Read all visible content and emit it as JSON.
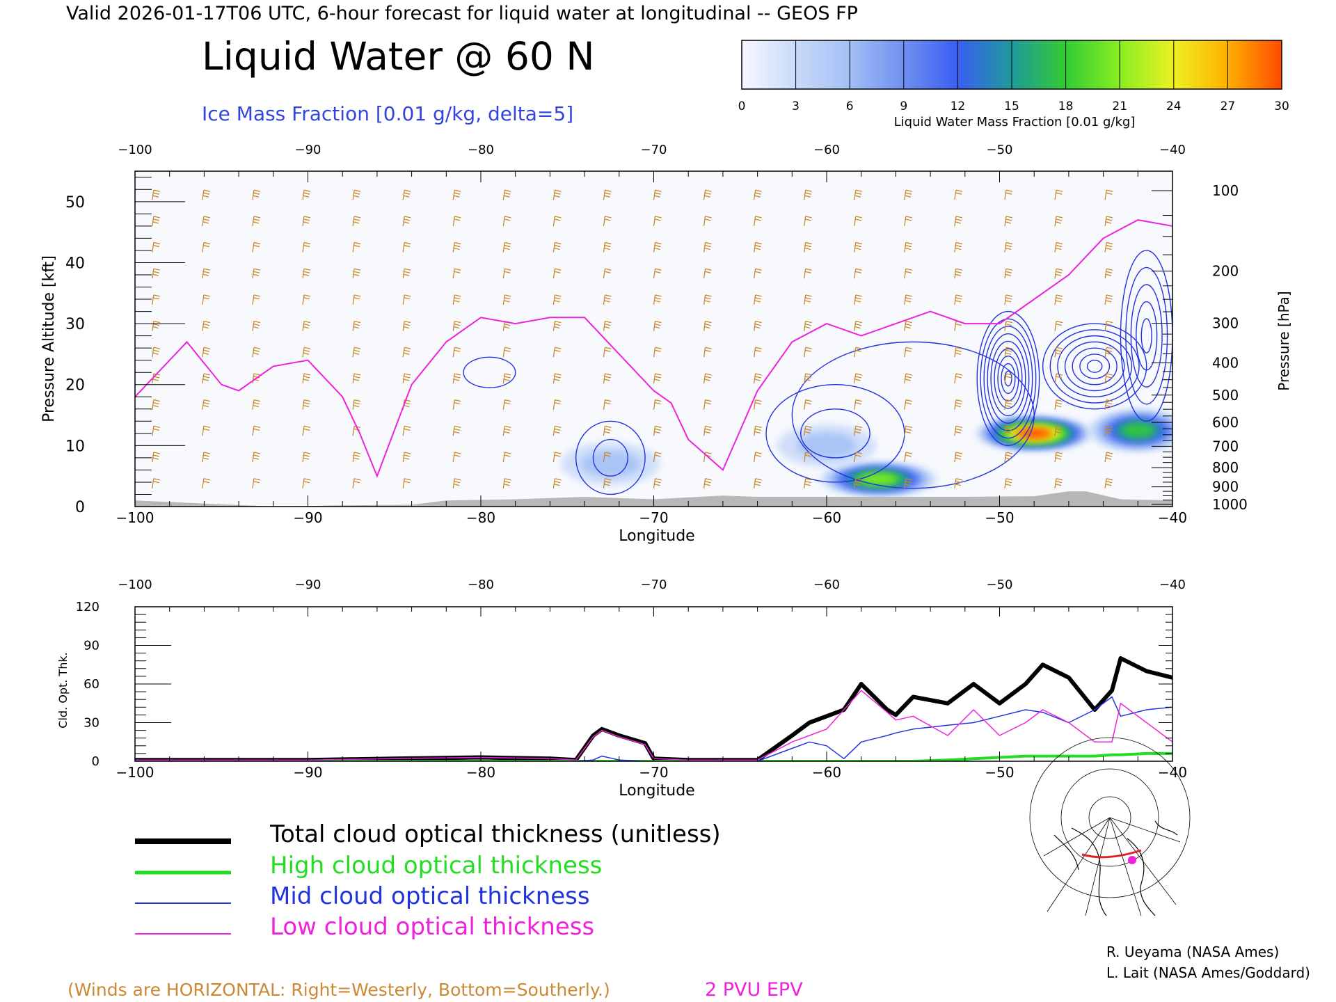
{
  "header": {
    "valid_line": "Valid 2026-01-17T06 UTC, 6-hour forecast for liquid water at longitudinal -- GEOS FP",
    "main_title": "Liquid Water @ 60 N",
    "ice_label": "Ice Mass Fraction [0.01 g/kg, delta=5]"
  },
  "colorbar": {
    "label": "Liquid Water Mass Fraction [0.01 g/kg]",
    "ticks": [
      "0",
      "3",
      "6",
      "9",
      "12",
      "15",
      "18",
      "21",
      "24",
      "27",
      "30"
    ],
    "colors": [
      "#f6f8ff",
      "#c9daf9",
      "#a3c0f5",
      "#6f8ff0",
      "#3a5ef2",
      "#1f9a9a",
      "#33cc33",
      "#88ee22",
      "#eef022",
      "#ffb000",
      "#ff4a00"
    ]
  },
  "top_panel": {
    "y_left_label": "Pressure Altitude [kft]",
    "y_left_ticks": [
      "0",
      "10",
      "20",
      "30",
      "40",
      "50"
    ],
    "y_right_label": "Pressure [hPa]",
    "y_right_ticks": [
      "100",
      "200",
      "300",
      "400",
      "500",
      "600",
      "700",
      "800",
      "900",
      "1000"
    ],
    "x_ticks": [
      "−100",
      "−90",
      "−80",
      "−70",
      "−60",
      "−50",
      "−40"
    ],
    "x_label": "Longitude"
  },
  "bottom_panel": {
    "y_label": "Cld. Opt. Thk.",
    "y_ticks": [
      "0",
      "30",
      "60",
      "90",
      "120"
    ],
    "x_ticks": [
      "−100",
      "−90",
      "−80",
      "−70",
      "−60",
      "−50",
      "−40"
    ],
    "x_label": "Longitude"
  },
  "legend": {
    "total": "Total cloud optical thickness (unitless)",
    "high": "High cloud optical thickness",
    "mid": "Mid cloud optical thickness",
    "low": "Low cloud optical thickness",
    "colors": {
      "total": "#000000",
      "high": "#22dd22",
      "mid": "#2233dd",
      "low": "#ee22dd"
    }
  },
  "footer": {
    "winds_note": "(Winds are HORIZONTAL: Right=Westerly, Bottom=Southerly.)",
    "epv_label": "2 PVU EPV",
    "credit_1": "R. Ueyama (NASA Ames)",
    "credit_2": "L. Lait (NASA Ames/Goddard)"
  },
  "chart_data": [
    {
      "type": "heatmap",
      "title": "Liquid Water @ 60 N",
      "xlabel": "Longitude",
      "ylabel": "Pressure Altitude [kft]",
      "xlim": [
        -100,
        -40
      ],
      "ylim": [
        0,
        55
      ],
      "liquid_water_blobs": [
        {
          "lon": -57.0,
          "alt_kft": 4.5,
          "peak": 21
        },
        {
          "lon": -48.0,
          "alt_kft": 12.0,
          "peak": 30
        },
        {
          "lon": -42.0,
          "alt_kft": 12.5,
          "peak": 18
        },
        {
          "lon": -60.0,
          "alt_kft": 10.0,
          "peak": 8
        },
        {
          "lon": -72.5,
          "alt_kft": 7.0,
          "peak": 6
        }
      ],
      "epv_2pvu_line": {
        "lon": [
          -100,
          -97,
          -95,
          -94,
          -92,
          -90,
          -88,
          -87,
          -86,
          -84,
          -82,
          -80,
          -78,
          -76,
          -74,
          -72,
          -70,
          -69,
          -68,
          -66,
          -64,
          -62,
          -60,
          -58,
          -56,
          -54,
          -52,
          -50,
          -48,
          -46,
          -44,
          -42,
          -40
        ],
        "alt_kft": [
          18,
          27,
          20,
          19,
          23,
          24,
          18,
          12,
          5,
          20,
          27,
          31,
          30,
          31,
          31,
          25,
          19,
          17,
          11,
          6,
          19,
          27,
          30,
          28,
          30,
          32,
          30,
          30,
          34,
          38,
          44,
          47,
          46
        ]
      },
      "terrain_kft": {
        "lon": [
          -100,
          -96,
          -92,
          -88,
          -84,
          -82,
          -78,
          -74,
          -70,
          -66,
          -64,
          -60,
          -56,
          -52,
          -48,
          -46,
          -45,
          -43,
          -40
        ],
        "alt_kft": [
          1,
          0.5,
          0,
          0.2,
          0.3,
          1,
          1.2,
          1.6,
          1.2,
          1.8,
          1.6,
          1.6,
          1.6,
          1.6,
          1.7,
          2.5,
          2.5,
          1.2,
          1
        ]
      }
    },
    {
      "type": "line",
      "xlabel": "Longitude",
      "ylabel": "Cld. Opt. Thk.",
      "xlim": [
        -100,
        -40
      ],
      "ylim": [
        0,
        120
      ],
      "x": [
        -100,
        -90,
        -85,
        -80,
        -76,
        -74.5,
        -73.5,
        -73,
        -72,
        -70.5,
        -70,
        -68,
        -64,
        -62,
        -61,
        -60,
        -59,
        -58,
        -56.5,
        -56,
        -55,
        -53,
        -51.5,
        -50,
        -48.5,
        -47.5,
        -46,
        -44.5,
        -43.5,
        -43,
        -41.5,
        -40
      ],
      "series": [
        {
          "name": "Total cloud optical thickness (unitless)",
          "values": [
            1,
            1,
            2,
            3,
            2,
            1,
            20,
            25,
            20,
            14,
            2,
            1,
            1,
            20,
            30,
            35,
            40,
            60,
            40,
            36,
            50,
            45,
            60,
            45,
            60,
            75,
            65,
            40,
            55,
            80,
            70,
            65
          ]
        },
        {
          "name": "High cloud optical thickness",
          "values": [
            0,
            0,
            0,
            0,
            0,
            0,
            0,
            0,
            0,
            0,
            0,
            0,
            0,
            0,
            0,
            0,
            0,
            0,
            0,
            0,
            0,
            1,
            2,
            3,
            4,
            4,
            4,
            4,
            5,
            5,
            6,
            6
          ]
        },
        {
          "name": "Mid cloud optical thickness",
          "values": [
            0,
            0,
            0,
            0,
            0,
            0,
            1,
            4,
            1,
            0,
            0,
            0,
            0,
            10,
            15,
            12,
            2,
            15,
            20,
            22,
            25,
            28,
            30,
            35,
            40,
            38,
            30,
            40,
            50,
            35,
            40,
            42
          ]
        },
        {
          "name": "Low cloud optical thickness",
          "values": [
            1,
            1,
            2,
            3,
            2,
            1,
            19,
            24,
            19,
            13,
            2,
            1,
            1,
            15,
            20,
            25,
            40,
            55,
            38,
            32,
            35,
            20,
            40,
            20,
            30,
            40,
            30,
            15,
            15,
            45,
            30,
            15
          ]
        }
      ]
    }
  ]
}
